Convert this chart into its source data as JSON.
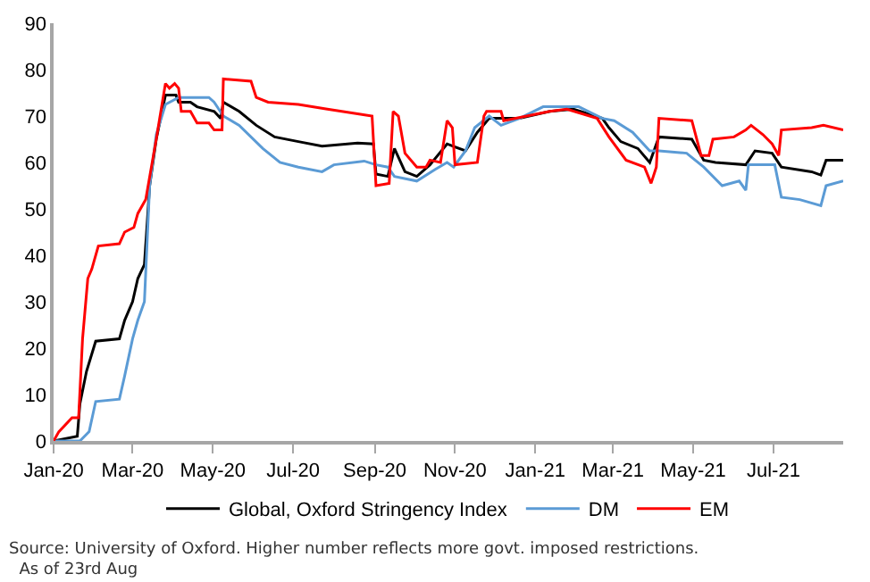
{
  "chart_data": {
    "type": "line",
    "annotations": [
      "Source: University of Oxford. Higher number reflects more govt. imposed restrictions.\n  As of 23rd Aug"
    ],
    "xlim": [
      "2020-01-01",
      "2021-08-23"
    ],
    "xticks": [
      {
        "value": "2020-01-01",
        "label": "Jan-20"
      },
      {
        "value": "2020-03-01",
        "label": "Mar-20"
      },
      {
        "value": "2020-05-01",
        "label": "May-20"
      },
      {
        "value": "2020-07-01",
        "label": "Jul-20"
      },
      {
        "value": "2020-09-01",
        "label": "Sep-20"
      },
      {
        "value": "2020-11-01",
        "label": "Nov-20"
      },
      {
        "value": "2021-01-01",
        "label": "Jan-21"
      },
      {
        "value": "2021-03-01",
        "label": "Mar-21"
      },
      {
        "value": "2021-05-01",
        "label": "May-21"
      },
      {
        "value": "2021-07-01",
        "label": "Jul-21"
      }
    ],
    "ylim": [
      0,
      90
    ],
    "yticks": [
      0,
      10,
      20,
      30,
      40,
      50,
      60,
      70,
      80,
      90
    ],
    "legend": "bottom",
    "marker": "none",
    "line_style": "solid",
    "series": [
      {
        "name": "Global, Oxford Stringency Index",
        "color": "#000000",
        "x": [
          "2020-01-01",
          "2020-01-19",
          "2020-01-21",
          "2020-01-26",
          "2020-02-02",
          "2020-02-20",
          "2020-02-24",
          "2020-03-01",
          "2020-03-05",
          "2020-03-10",
          "2020-03-14",
          "2020-03-19",
          "2020-03-26",
          "2020-04-03",
          "2020-04-05",
          "2020-04-14",
          "2020-04-19",
          "2020-05-02",
          "2020-05-07",
          "2020-05-09",
          "2020-05-21",
          "2020-06-03",
          "2020-06-17",
          "2020-07-05",
          "2020-07-23",
          "2020-08-19",
          "2020-08-31",
          "2020-09-02",
          "2020-09-11",
          "2020-09-16",
          "2020-09-24",
          "2020-10-03",
          "2020-10-13",
          "2020-10-26",
          "2020-11-09",
          "2020-11-18",
          "2020-11-27",
          "2020-12-20",
          "2021-01-12",
          "2021-01-30",
          "2021-02-21",
          "2021-02-26",
          "2021-03-07",
          "2021-03-20",
          "2021-03-29",
          "2021-04-05",
          "2021-04-30",
          "2021-05-09",
          "2021-05-18",
          "2021-06-10",
          "2021-06-17",
          "2021-06-30",
          "2021-07-07",
          "2021-07-30",
          "2021-08-06",
          "2021-08-10",
          "2021-08-23"
        ],
        "values": [
          0,
          1,
          8,
          15,
          21.5,
          22,
          26,
          30,
          35,
          38,
          55,
          65,
          74.5,
          74.5,
          73,
          73,
          72,
          71,
          69.5,
          73,
          71,
          68,
          65.5,
          64.5,
          63.5,
          64.2,
          64,
          57.5,
          57,
          63,
          58,
          57,
          59.5,
          64,
          62.5,
          66.5,
          69.5,
          69.5,
          71,
          71.5,
          69.5,
          67.5,
          64.5,
          63,
          60,
          65.5,
          65,
          60.5,
          60,
          59.5,
          62.5,
          62,
          59,
          58,
          57.3,
          60.5,
          60.5
        ]
      },
      {
        "name": "DM",
        "color": "#5b9bd5",
        "x": [
          "2020-01-01",
          "2020-01-21",
          "2020-01-28",
          "2020-02-02",
          "2020-02-20",
          "2020-02-24",
          "2020-03-01",
          "2020-03-05",
          "2020-03-10",
          "2020-03-14",
          "2020-03-19",
          "2020-03-26",
          "2020-04-05",
          "2020-04-28",
          "2020-05-02",
          "2020-05-09",
          "2020-05-21",
          "2020-06-08",
          "2020-06-21",
          "2020-07-05",
          "2020-07-23",
          "2020-08-01",
          "2020-08-24",
          "2020-09-02",
          "2020-09-11",
          "2020-09-16",
          "2020-10-03",
          "2020-10-17",
          "2020-10-26",
          "2020-10-31",
          "2020-11-09",
          "2020-11-16",
          "2020-11-27",
          "2020-12-06",
          "2020-12-20",
          "2021-01-07",
          "2021-02-03",
          "2021-02-21",
          "2021-03-02",
          "2021-03-16",
          "2021-03-29",
          "2021-04-05",
          "2021-04-26",
          "2021-05-09",
          "2021-05-23",
          "2021-06-05",
          "2021-06-10",
          "2021-06-12",
          "2021-07-02",
          "2021-07-07",
          "2021-07-21",
          "2021-08-06",
          "2021-08-10",
          "2021-08-23"
        ],
        "values": [
          0,
          0,
          2,
          8.5,
          9,
          14,
          22,
          26,
          30,
          55,
          66,
          72.5,
          74,
          74,
          73,
          70,
          68,
          63,
          60,
          59,
          58,
          59.5,
          60.3,
          59.5,
          59,
          57,
          56,
          58.5,
          60,
          59,
          62.5,
          67.5,
          70,
          68,
          69.5,
          72,
          72,
          69.5,
          69,
          66.5,
          62.5,
          62.5,
          62,
          59,
          55,
          56,
          54,
          59.5,
          59.5,
          52.5,
          52,
          50.7,
          55,
          56
        ]
      },
      {
        "name": "EM",
        "color": "#ff0000",
        "x": [
          "2020-01-01",
          "2020-01-05",
          "2020-01-15",
          "2020-01-20",
          "2020-01-23",
          "2020-01-27",
          "2020-01-30",
          "2020-02-04",
          "2020-02-20",
          "2020-02-24",
          "2020-03-02",
          "2020-03-05",
          "2020-03-11",
          "2020-03-19",
          "2020-03-26",
          "2020-03-29",
          "2020-04-02",
          "2020-04-05",
          "2020-04-07",
          "2020-04-14",
          "2020-04-19",
          "2020-04-28",
          "2020-05-02",
          "2020-05-08",
          "2020-05-09",
          "2020-05-30",
          "2020-06-03",
          "2020-06-12",
          "2020-07-05",
          "2020-07-27",
          "2020-08-19",
          "2020-08-30",
          "2020-09-02",
          "2020-09-12",
          "2020-09-15",
          "2020-09-19",
          "2020-09-24",
          "2020-10-03",
          "2020-10-10",
          "2020-10-13",
          "2020-10-21",
          "2020-10-26",
          "2020-10-30",
          "2020-11-01",
          "2020-11-18",
          "2020-11-23",
          "2020-11-25",
          "2020-12-06",
          "2020-12-08",
          "2021-01-12",
          "2021-01-25",
          "2021-02-17",
          "2021-02-26",
          "2021-03-11",
          "2021-03-25",
          "2021-03-30",
          "2021-04-03",
          "2021-04-05",
          "2021-04-30",
          "2021-05-07",
          "2021-05-13",
          "2021-05-16",
          "2021-06-01",
          "2021-06-10",
          "2021-06-14",
          "2021-06-23",
          "2021-06-30",
          "2021-07-05",
          "2021-07-07",
          "2021-07-30",
          "2021-08-08",
          "2021-08-23"
        ],
        "values": [
          0,
          2,
          5,
          5,
          22,
          35,
          37,
          42,
          42.5,
          45,
          46,
          49,
          52,
          65,
          77,
          76,
          77,
          76,
          71,
          71,
          68.5,
          68.5,
          67,
          67,
          78,
          77.5,
          74,
          73,
          72.5,
          71.5,
          70.5,
          70,
          55,
          55.5,
          71,
          70,
          62,
          59,
          59,
          60.5,
          60,
          69,
          67.5,
          59.5,
          60,
          70,
          71,
          71,
          69,
          71,
          71.5,
          69.5,
          65.5,
          60.5,
          59,
          55.5,
          59,
          69.5,
          69,
          61.5,
          61.5,
          65,
          65.5,
          67,
          68,
          66,
          64,
          61.5,
          67,
          67.5,
          68,
          67
        ]
      }
    ]
  }
}
